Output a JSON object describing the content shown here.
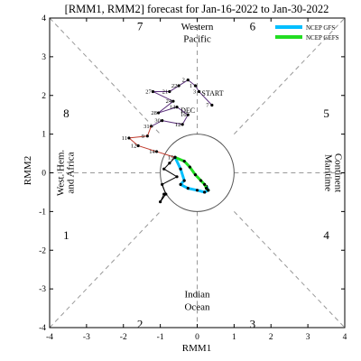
{
  "chart_data": {
    "type": "line",
    "title": "[RMM1, RMM2] forecast for Jan-16-2022 to Jan-30-2022",
    "xlabel": "RMM1",
    "ylabel": "RMM2",
    "xlim": [
      -4,
      4
    ],
    "ylim": [
      -4,
      4
    ],
    "ticks": [
      "-4",
      "-3",
      "-2",
      "-1",
      "0",
      "1",
      "2",
      "3",
      "4"
    ],
    "phase_labels": [
      {
        "text": "1",
        "x": -3.55,
        "y": -1.6
      },
      {
        "text": "2",
        "x": -1.55,
        "y": -3.9
      },
      {
        "text": "3",
        "x": 1.5,
        "y": -3.9
      },
      {
        "text": "4",
        "x": 3.5,
        "y": -1.6
      },
      {
        "text": "5",
        "x": 3.5,
        "y": 1.55
      },
      {
        "text": "6",
        "x": 1.5,
        "y": 3.8
      },
      {
        "text": "7",
        "x": -1.55,
        "y": 3.8
      },
      {
        "text": "8",
        "x": -3.55,
        "y": 1.55
      }
    ],
    "region_labels": {
      "top": [
        "Western",
        "Pacific"
      ],
      "bottom": [
        "Indian",
        "Ocean"
      ],
      "left": [
        "West. Hem.",
        "and Africa"
      ],
      "right": [
        "Maritime",
        "Continent"
      ]
    },
    "legend": [
      {
        "name": "NCEP GFS",
        "color": "#00bfff"
      },
      {
        "name": "NCEP GEFS",
        "color": "#22dd22"
      }
    ],
    "annotations": [
      {
        "text": "START",
        "x": 0.12,
        "y": 2.0,
        "color": "#7a4b9e"
      },
      {
        "text": "DEC",
        "x": -0.45,
        "y": 1.55,
        "color": "#7a4b9e"
      }
    ],
    "observed_december": {
      "color": "#5a2f7a",
      "points": [
        {
          "x": 0.4,
          "y": 1.75,
          "label": "7"
        },
        {
          "x": 0.05,
          "y": 2.1,
          "label": "3"
        },
        {
          "x": -0.05,
          "y": 2.25,
          "label": "1"
        },
        {
          "x": -0.25,
          "y": 2.4,
          "label": "2"
        },
        {
          "x": -0.5,
          "y": 2.25,
          "label": "22"
        },
        {
          "x": -0.75,
          "y": 2.1,
          "label": "21"
        },
        {
          "x": -1.2,
          "y": 2.1,
          "label": "27"
        },
        {
          "x": -0.65,
          "y": 1.85,
          "label": "24"
        },
        {
          "x": -1.05,
          "y": 1.55,
          "label": "28"
        },
        {
          "x": -0.55,
          "y": 1.7,
          "label": "14"
        },
        {
          "x": -0.25,
          "y": 1.5,
          "label": "16"
        },
        {
          "x": -0.4,
          "y": 1.25,
          "label": "12"
        },
        {
          "x": -0.95,
          "y": 1.35,
          "label": "30"
        },
        {
          "x": -1.25,
          "y": 1.2,
          "label": "31"
        }
      ]
    },
    "observed_january": {
      "color": "#c0392b",
      "points": [
        {
          "x": -1.35,
          "y": 0.95,
          "label": "9"
        },
        {
          "x": -1.85,
          "y": 0.9,
          "label": "11"
        },
        {
          "x": -1.6,
          "y": 0.7,
          "label": "12"
        },
        {
          "x": -1.1,
          "y": 0.55,
          "label": "14"
        },
        {
          "x": -0.6,
          "y": 0.4,
          "label": "15"
        }
      ]
    },
    "series": [
      {
        "name": "NCEP GFS",
        "color": "#00bfff",
        "x": [
          -0.6,
          -0.45,
          -0.35,
          -0.45,
          -0.25,
          0.0,
          0.2,
          0.3,
          0.25
        ],
        "y": [
          0.4,
          0.1,
          -0.2,
          -0.3,
          -0.4,
          -0.45,
          -0.5,
          -0.45,
          -0.35
        ]
      },
      {
        "name": "NCEP GEFS",
        "color": "#22dd22",
        "x": [
          -0.6,
          -0.35,
          -0.2,
          -0.05,
          0.1,
          0.2,
          0.25,
          0.3,
          0.25
        ],
        "y": [
          0.4,
          0.3,
          0.15,
          -0.05,
          -0.2,
          -0.3,
          -0.4,
          -0.45,
          -0.4
        ]
      },
      {
        "name": "",
        "color": "#000000",
        "x": [
          -0.6,
          -0.75,
          -0.9,
          -0.55,
          -0.95,
          -0.85,
          -1.0,
          -0.9
        ],
        "y": [
          0.4,
          0.25,
          0.1,
          -0.1,
          -0.3,
          -0.55,
          -0.75,
          -0.55
        ]
      }
    ]
  }
}
